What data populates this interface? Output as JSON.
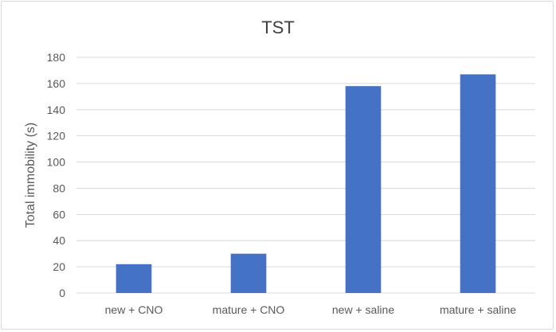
{
  "chart_data": {
    "type": "bar",
    "title": "TST",
    "xlabel": "",
    "ylabel": "Total immobility (s)",
    "categories": [
      "new + CNO",
      "mature + CNO",
      "new + saline",
      "mature + saline"
    ],
    "values": [
      22,
      30,
      158,
      167
    ],
    "ylim": [
      0,
      180
    ],
    "yticks": [
      0,
      20,
      40,
      60,
      80,
      100,
      120,
      140,
      160,
      180
    ],
    "grid": true,
    "legend": "none",
    "bar_color": "#4472c4",
    "grid_color": "#d9d9d9"
  }
}
